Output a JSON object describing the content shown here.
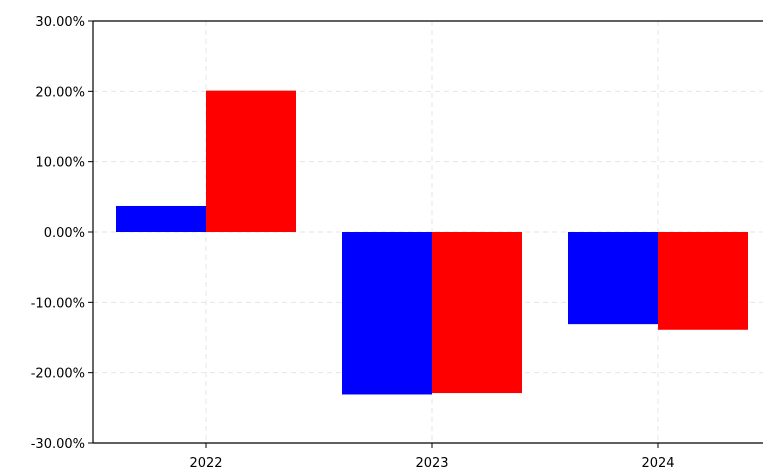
{
  "chart_data": {
    "type": "bar",
    "title": "",
    "xlabel": "",
    "ylabel": "",
    "categories": [
      "2022",
      "2023",
      "2024"
    ],
    "series": [
      {
        "color": "#0000ff",
        "values": [
          3.7,
          -23.1,
          -13.1
        ]
      },
      {
        "color": "#ff0000",
        "values": [
          20.1,
          -22.9,
          -13.9
        ]
      }
    ],
    "ylim": [
      -30,
      30
    ],
    "y_ticks": [
      30,
      20,
      10,
      0,
      -10,
      -20,
      -30
    ],
    "y_tick_labels": [
      "30.00%",
      "20.00%",
      "10.00%",
      "0.00%",
      "-10.00%",
      "-20.00%",
      "-30.00%"
    ],
    "grid": true,
    "legend": "none"
  }
}
